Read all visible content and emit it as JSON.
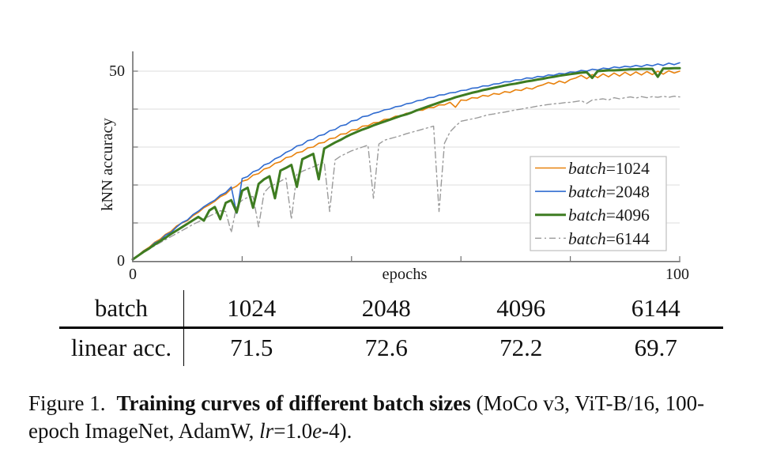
{
  "chart_data": {
    "type": "line",
    "title": "",
    "xlabel": "epochs",
    "ylabel": "kNN accuracy",
    "xlim": [
      0,
      100
    ],
    "ylim": [
      0,
      55
    ],
    "xticks": [
      0,
      20,
      40,
      60,
      80,
      100
    ],
    "yticks": [
      0,
      10,
      20,
      30,
      40,
      50
    ],
    "xtick_labels": {
      "left": "0",
      "right": "100"
    },
    "ytick_labels": {
      "top": "50",
      "bottom": "0"
    },
    "grid": "horizontal-only",
    "legend_position": "right-middle",
    "x_start": 0,
    "x_step": 1,
    "series": [
      {
        "name": "batch=1024",
        "legend_var": "batch",
        "legend_val": "=1024",
        "color": "#E8820D",
        "width": 1.6,
        "dash": null,
        "values": [
          0.3,
          1.5,
          2.7,
          3.6,
          4.9,
          5.7,
          7.0,
          7.8,
          9.2,
          10.0,
          10.6,
          11.9,
          12.8,
          14.0,
          14.8,
          15.7,
          16.9,
          17.6,
          19.0,
          19.7,
          21.0,
          21.4,
          22.6,
          23.0,
          24.2,
          24.6,
          25.7,
          26.1,
          27.2,
          27.5,
          28.5,
          28.8,
          29.8,
          30.0,
          31.0,
          31.2,
          32.2,
          32.4,
          33.4,
          33.5,
          34.5,
          34.6,
          35.5,
          35.6,
          36.4,
          36.5,
          37.3,
          37.4,
          38.1,
          38.2,
          38.9,
          39.0,
          39.7,
          39.7,
          40.4,
          40.4,
          41.1,
          41.1,
          41.8,
          40.5,
          42.4,
          42.3,
          43.0,
          42.9,
          43.6,
          43.4,
          44.1,
          43.9,
          44.6,
          44.4,
          45.1,
          44.9,
          45.6,
          45.3,
          46.0,
          46.4,
          47.0,
          46.6,
          47.4,
          46.9,
          47.8,
          48.2,
          48.9,
          48.0,
          49.1,
          48.3,
          49.3,
          48.5,
          49.5,
          48.7,
          49.7,
          48.9,
          49.8,
          49.0,
          49.9,
          49.1,
          50.0,
          49.2,
          50.1,
          49.5,
          50.0
        ]
      },
      {
        "name": "batch=2048",
        "legend_var": "batch",
        "legend_val": "=2048",
        "color": "#2F6BD0",
        "width": 1.6,
        "dash": null,
        "values": [
          0.3,
          1.4,
          2.6,
          3.4,
          4.7,
          5.4,
          6.8,
          7.5,
          8.9,
          10.1,
          10.8,
          12.2,
          13.1,
          14.3,
          15.2,
          16.0,
          17.3,
          18.0,
          19.5,
          12.5,
          21.7,
          22.2,
          23.5,
          24.0,
          25.3,
          25.8,
          26.9,
          27.5,
          28.6,
          29.2,
          30.3,
          30.6,
          31.7,
          32.0,
          33.0,
          33.3,
          34.3,
          34.6,
          35.6,
          35.9,
          36.9,
          37.1,
          38.0,
          38.2,
          38.9,
          39.2,
          39.8,
          40.0,
          40.6,
          40.8,
          41.4,
          41.6,
          42.2,
          42.4,
          43.0,
          43.1,
          43.7,
          43.8,
          44.3,
          44.4,
          44.9,
          45.0,
          45.5,
          45.6,
          46.1,
          46.1,
          46.6,
          46.7,
          47.2,
          47.2,
          47.7,
          47.7,
          48.2,
          48.1,
          48.6,
          48.5,
          49.0,
          48.9,
          49.4,
          49.3,
          49.8,
          49.7,
          50.2,
          50.0,
          50.5,
          50.3,
          50.8,
          50.6,
          51.1,
          50.9,
          51.3,
          51.1,
          51.5,
          51.2,
          51.7,
          51.4,
          51.9,
          51.5,
          52.1,
          51.7,
          52.2
        ]
      },
      {
        "name": "batch=4096",
        "legend_var": "batch",
        "legend_val": "=4096",
        "color": "#3E7C21",
        "width": 3,
        "dash": null,
        "values": [
          0.4,
          1.4,
          2.4,
          3.3,
          4.3,
          5.2,
          6.1,
          7.1,
          8.0,
          8.9,
          9.8,
          10.7,
          11.6,
          10.6,
          13.3,
          14.2,
          11.0,
          15.3,
          16.0,
          12.8,
          18.5,
          19.3,
          14.0,
          20.3,
          21.5,
          22.3,
          16.5,
          23.8,
          24.5,
          25.3,
          19.5,
          26.8,
          27.5,
          28.2,
          21.5,
          29.6,
          30.4,
          31.2,
          31.9,
          32.7,
          33.4,
          34.0,
          34.6,
          35.1,
          35.7,
          36.2,
          36.7,
          37.2,
          37.7,
          38.2,
          38.6,
          39.1,
          39.7,
          40.2,
          40.7,
          41.2,
          41.7,
          42.2,
          42.6,
          43.1,
          43.5,
          43.9,
          44.3,
          44.6,
          45.0,
          45.3,
          45.6,
          45.9,
          46.2,
          46.5,
          46.7,
          47.0,
          47.3,
          47.5,
          47.8,
          48.0,
          48.3,
          48.5,
          48.8,
          49.0,
          49.2,
          49.4,
          49.6,
          49.7,
          48.2,
          50.0,
          50.1,
          50.2,
          50.2,
          50.3,
          50.4,
          50.5,
          50.5,
          50.6,
          50.6,
          50.6,
          48.5,
          50.7,
          50.7,
          50.8,
          50.8
        ]
      },
      {
        "name": "batch=6144",
        "legend_var": "batch",
        "legend_val": "=6144",
        "color": "#9B9B9B",
        "width": 1.4,
        "dash": "8 4 2 4",
        "values": [
          0.4,
          1.3,
          2.2,
          3.1,
          4.0,
          4.8,
          5.6,
          6.4,
          7.2,
          8.0,
          8.8,
          9.6,
          10.3,
          11.1,
          11.8,
          12.5,
          13.2,
          13.0,
          7.5,
          14.6,
          16.0,
          16.7,
          17.0,
          9.0,
          18.0,
          19.5,
          20.2,
          21.0,
          21.8,
          11.0,
          22.8,
          23.6,
          24.2,
          24.8,
          25.4,
          26.0,
          13.0,
          26.6,
          27.6,
          28.3,
          29.0,
          29.5,
          30.0,
          30.5,
          16.5,
          30.8,
          31.8,
          32.2,
          32.6,
          33.0,
          33.5,
          33.9,
          34.3,
          34.7,
          35.1,
          35.5,
          13.0,
          31.0,
          34.0,
          35.5,
          36.8,
          37.1,
          37.4,
          37.7,
          38.1,
          38.5,
          38.7,
          39.0,
          39.2,
          39.5,
          39.8,
          40.0,
          40.3,
          40.5,
          40.8,
          41.0,
          41.2,
          41.4,
          41.5,
          41.7,
          41.8,
          42.0,
          42.2,
          41.5,
          42.4,
          42.5,
          42.7,
          42.4,
          43.0,
          42.7,
          43.0,
          43.2,
          42.9,
          43.3,
          43.0,
          43.3,
          43.1,
          43.4,
          43.1,
          43.4,
          43.2
        ]
      }
    ]
  },
  "table": {
    "row1_label": "batch",
    "row2_label": "linear acc.",
    "batches": [
      "1024",
      "2048",
      "4096",
      "6144"
    ],
    "linear_acc": [
      "71.5",
      "72.6",
      "72.2",
      "69.7"
    ]
  },
  "caption": {
    "label": "Figure 1.",
    "bold": "Training curves of different batch sizes",
    "pre_lr": " (MoCo v3, ViT-B/16, 100-epoch ImageNet, AdamW, ",
    "lr": "lr",
    "eq": "=1.0",
    "e": "e",
    "tail": "-4)."
  },
  "colors": {
    "grid": "#dcdcdc",
    "axis": "#707070",
    "legend_border": "#bfbfbf"
  }
}
